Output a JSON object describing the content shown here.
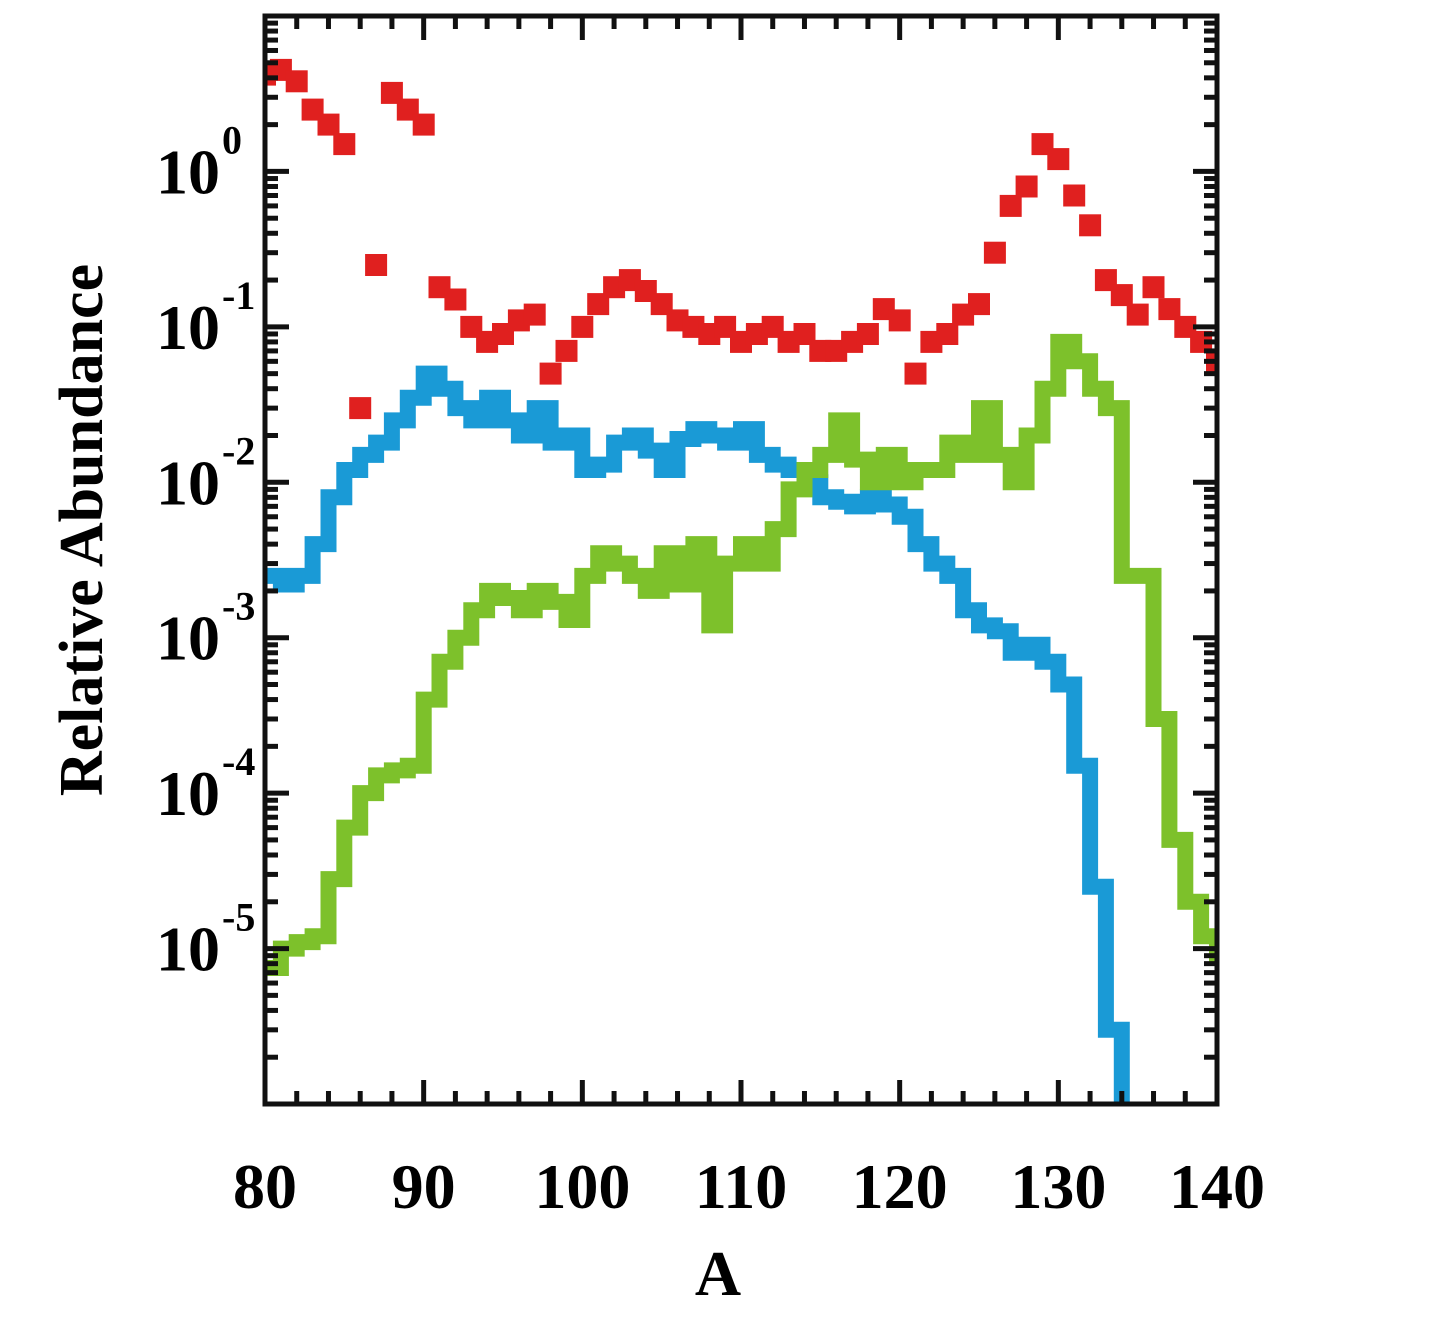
{
  "chart_data": {
    "type": "line",
    "title": "",
    "xlabel": "A",
    "ylabel": "Relative Abundance",
    "xlim": [
      80,
      140
    ],
    "ylim": [
      1e-06,
      10
    ],
    "yscale": "log",
    "grid": false,
    "legend": "none",
    "x_ticks": [
      80,
      90,
      100,
      110,
      120,
      130,
      140
    ],
    "y_ticks": [
      {
        "value": 1e-05,
        "base": "10",
        "exp": "-5"
      },
      {
        "value": 0.0001,
        "base": "10",
        "exp": "-4"
      },
      {
        "value": 0.001,
        "base": "10",
        "exp": "-3"
      },
      {
        "value": 0.01,
        "base": "10",
        "exp": "-2"
      },
      {
        "value": 0.1,
        "base": "10",
        "exp": "-1"
      },
      {
        "value": 1,
        "base": "10",
        "exp": "0"
      }
    ],
    "series": [
      {
        "color": "#e0201f",
        "style": "squares",
        "x": [
          80,
          81,
          82,
          83,
          84,
          85,
          86,
          87,
          88,
          89,
          90,
          91,
          92,
          93,
          94,
          95,
          96,
          97,
          98,
          99,
          100,
          101,
          102,
          103,
          104,
          105,
          106,
          107,
          108,
          109,
          110,
          111,
          112,
          113,
          114,
          115,
          116,
          117,
          118,
          119,
          120,
          121,
          122,
          123,
          124,
          125,
          126,
          127,
          128,
          129,
          130,
          131,
          132,
          133,
          134,
          135,
          136,
          137,
          138,
          139,
          140
        ],
        "y": [
          4.2,
          4.5,
          3.8,
          2.5,
          2.0,
          1.5,
          0.03,
          0.25,
          3.2,
          2.5,
          2.0,
          0.18,
          0.15,
          0.1,
          0.08,
          0.09,
          0.11,
          0.12,
          0.05,
          0.07,
          0.1,
          0.14,
          0.18,
          0.2,
          0.17,
          0.14,
          0.11,
          0.1,
          0.09,
          0.1,
          0.08,
          0.09,
          0.1,
          0.08,
          0.09,
          0.07,
          0.07,
          0.08,
          0.09,
          0.13,
          0.11,
          0.05,
          0.08,
          0.09,
          0.12,
          0.14,
          0.3,
          0.6,
          0.8,
          1.5,
          1.2,
          0.7,
          0.45,
          0.2,
          0.16,
          0.12,
          0.18,
          0.13,
          0.1,
          0.08,
          0.06
        ]
      },
      {
        "color": "#1a9ad6",
        "style": "line",
        "x": [
          80,
          81,
          82,
          83,
          84,
          85,
          86,
          87,
          88,
          89,
          90,
          91,
          92,
          93,
          94,
          95,
          96,
          97,
          98,
          99,
          100,
          101,
          102,
          103,
          104,
          105,
          106,
          107,
          108,
          109,
          110,
          111,
          112,
          113,
          114,
          115,
          116,
          117,
          118,
          119,
          120,
          121,
          122,
          123,
          124,
          125,
          126,
          127,
          128,
          129,
          130,
          131,
          132,
          133,
          134,
          135
        ],
        "y": [
          0.0025,
          0.0022,
          0.0025,
          0.004,
          0.008,
          0.012,
          0.015,
          0.018,
          0.025,
          0.035,
          0.05,
          0.04,
          0.03,
          0.025,
          0.035,
          0.025,
          0.02,
          0.03,
          0.018,
          0.02,
          0.012,
          0.013,
          0.018,
          0.02,
          0.016,
          0.012,
          0.019,
          0.022,
          0.02,
          0.018,
          0.022,
          0.015,
          0.013,
          0.012,
          0.01,
          0.008,
          0.0075,
          0.007,
          0.008,
          0.0072,
          0.006,
          0.004,
          0.003,
          0.0025,
          0.0015,
          0.0012,
          0.0011,
          0.0008,
          0.0009,
          0.0007,
          0.0005,
          0.00015,
          2.5e-05,
          3e-06,
          7.5e-07,
          8e-07
        ]
      },
      {
        "color": "#7dc12b",
        "style": "line",
        "x": [
          80,
          81,
          82,
          83,
          84,
          85,
          86,
          87,
          88,
          89,
          90,
          91,
          92,
          93,
          94,
          95,
          96,
          97,
          98,
          99,
          100,
          101,
          102,
          103,
          104,
          105,
          106,
          107,
          108,
          109,
          110,
          111,
          112,
          113,
          114,
          115,
          116,
          117,
          118,
          119,
          120,
          121,
          122,
          123,
          124,
          125,
          126,
          127,
          128,
          129,
          130,
          131,
          132,
          133,
          134,
          135,
          136,
          137,
          138,
          139,
          140
        ],
        "y": [
          7.5e-06,
          1e-05,
          1.1e-05,
          1.2e-05,
          2.8e-05,
          6e-05,
          0.0001,
          0.00013,
          0.00014,
          0.00015,
          0.0004,
          0.0007,
          0.001,
          0.0015,
          0.002,
          0.0018,
          0.0015,
          0.002,
          0.0017,
          0.0013,
          0.0025,
          0.0035,
          0.003,
          0.0025,
          0.002,
          0.0035,
          0.0022,
          0.004,
          0.0012,
          0.003,
          0.004,
          0.003,
          0.005,
          0.009,
          0.012,
          0.015,
          0.025,
          0.014,
          0.01,
          0.015,
          0.01,
          0.012,
          0.012,
          0.018,
          0.015,
          0.03,
          0.015,
          0.01,
          0.02,
          0.04,
          0.08,
          0.06,
          0.04,
          0.03,
          0.0025,
          0.0025,
          0.0003,
          5e-05,
          2e-05,
          1.2e-05,
          8e-06
        ]
      }
    ]
  }
}
